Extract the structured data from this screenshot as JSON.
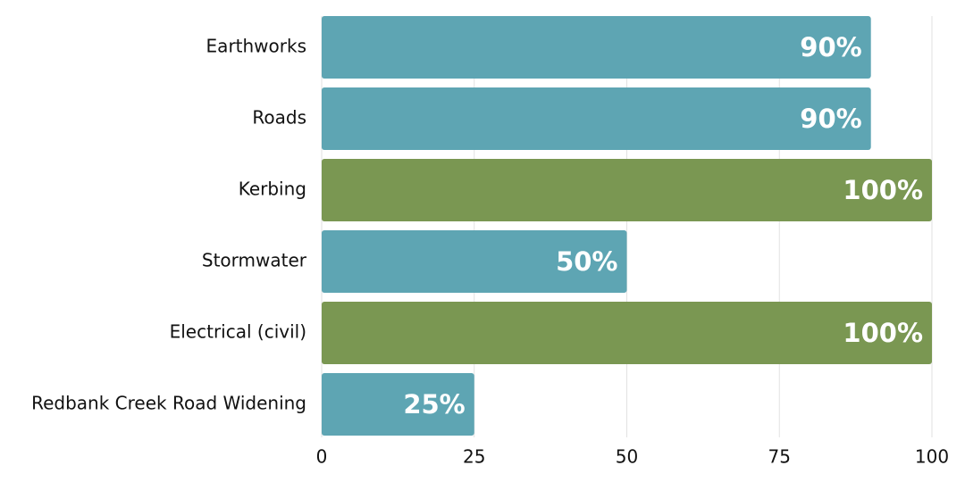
{
  "chart_data": {
    "type": "hbar",
    "categories": [
      "Earthworks",
      "Roads",
      "Kerbing",
      "Stormwater",
      "Electrical (civil)",
      "Redbank Creek Road Widening"
    ],
    "values": [
      90,
      90,
      100,
      50,
      100,
      25
    ],
    "value_labels": [
      "90%",
      "90%",
      "100%",
      "50%",
      "100%",
      "25%"
    ],
    "colors": [
      "#5ea5b3",
      "#5ea5b3",
      "#7a9752",
      "#5ea5b3",
      "#7a9752",
      "#5ea5b3"
    ],
    "xlim": [
      0,
      100
    ],
    "xticks": [
      0,
      25,
      50,
      75,
      100
    ],
    "grid": true
  }
}
